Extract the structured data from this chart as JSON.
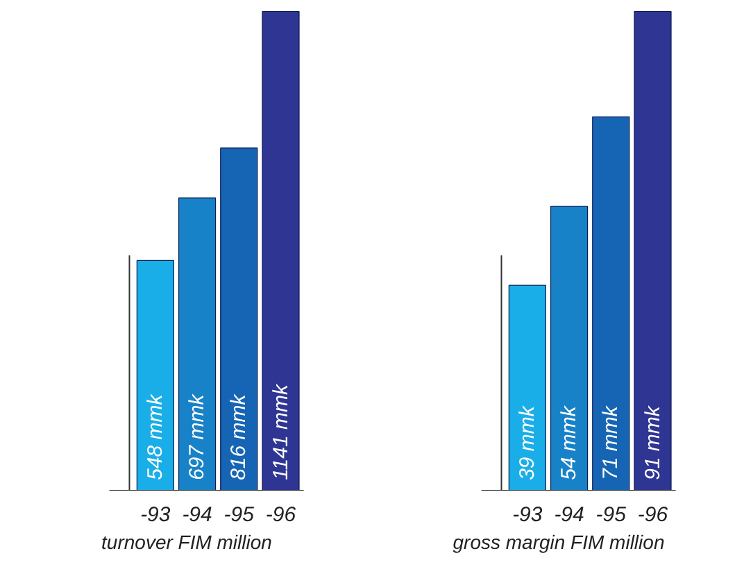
{
  "chart_data": [
    {
      "type": "bar",
      "xlabel": "turnover FIM million",
      "categories": [
        "-93",
        "-94",
        "-95",
        "-96"
      ],
      "values": [
        548,
        697,
        816,
        1141
      ],
      "value_labels": [
        "548 mmk",
        "697 mmk",
        "816 mmk",
        "1141 mmk"
      ],
      "colors": [
        "#1aaee8",
        "#1882c8",
        "#1665b4",
        "#2e3592"
      ]
    },
    {
      "type": "bar",
      "xlabel": "gross margin FIM million",
      "categories": [
        "-93",
        "-94",
        "-95",
        "-96"
      ],
      "values": [
        39,
        54,
        71,
        91
      ],
      "value_labels": [
        "39 mmk",
        "54 mmk",
        "71 mmk",
        "91 mmk"
      ],
      "colors": [
        "#1aaee8",
        "#1882c8",
        "#1665b4",
        "#2e3592"
      ]
    }
  ]
}
